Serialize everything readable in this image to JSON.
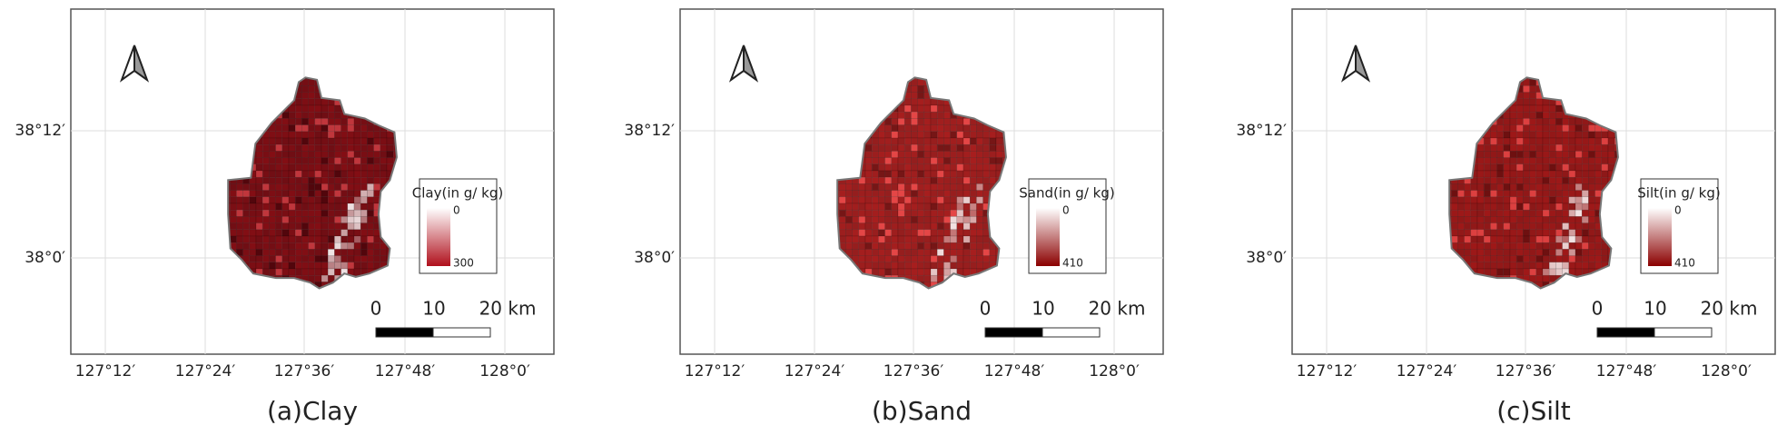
{
  "panels": [
    {
      "caption": "(a)Clay",
      "legend": {
        "title": "Clay(in g/ kg)",
        "min": 0,
        "max": 300
      },
      "lat_labels": [
        "38°12′",
        "38°0′"
      ],
      "lon_labels": [
        "127°12′",
        "127°24′",
        "127°36′",
        "127°48′",
        "128°0′"
      ],
      "scale_labels": [
        0,
        10,
        "20 km"
      ]
    },
    {
      "caption": "(b)Sand",
      "legend": {
        "title": "Sand(in g/ kg)",
        "min": 0,
        "max": 410
      },
      "lat_labels": [
        "38°12′",
        "38°0′"
      ],
      "lon_labels": [
        "127°12′",
        "127°24′",
        "127°36′",
        "127°48′",
        "128°0′"
      ],
      "scale_labels": [
        0,
        10,
        "20 km"
      ]
    },
    {
      "caption": "(c)Silt",
      "legend": {
        "title": "Silt(in g/ kg)",
        "min": 0,
        "max": 410
      },
      "lat_labels": [
        "38°12′",
        "38°0′"
      ],
      "lon_labels": [
        "127°12′",
        "127°24′",
        "127°36′",
        "127°48′",
        "128°0′"
      ],
      "scale_labels": [
        0,
        10,
        "20 km"
      ]
    }
  ]
}
